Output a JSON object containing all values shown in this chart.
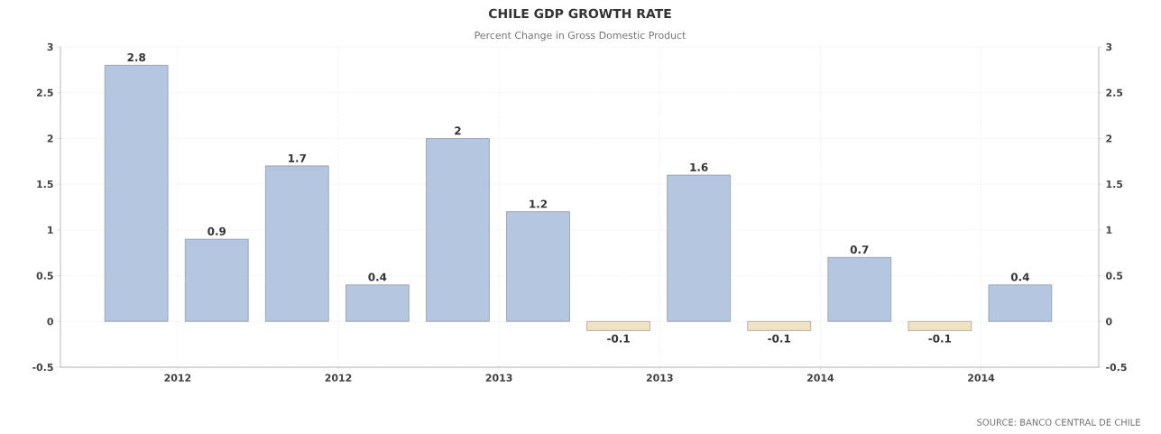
{
  "chart_data": {
    "type": "bar",
    "title": "CHILE GDP GROWTH RATE",
    "subtitle": "Percent Change in Gross Domestic Product",
    "x": [
      "2011-11-15",
      "2012-02-15",
      "2012-05-15",
      "2012-08-15",
      "2012-11-15",
      "2013-02-15",
      "2013-05-15",
      "2013-08-15",
      "2013-11-15",
      "2014-02-15",
      "2014-05-15",
      "2014-08-15"
    ],
    "values": [
      2.8,
      0.9,
      1.7,
      0.4,
      2,
      1.2,
      -0.1,
      1.6,
      -0.1,
      0.7,
      -0.1,
      0.4
    ],
    "colors": [
      "#b4c6e0",
      "#b4c6e0",
      "#b4c6e0",
      "#b4c6e0",
      "#b4c6e0",
      "#b4c6e0",
      "#f0e2c4",
      "#b4c6e0",
      "#f0e2c4",
      "#b4c6e0",
      "#f0e2c4",
      "#b4c6e0"
    ],
    "data_labels": true,
    "xlim": [
      "2011-08-20",
      "2014-11-13"
    ],
    "xticks": [
      {
        "value": "2012-01-01",
        "label": "2012"
      },
      {
        "value": "2012-07-01",
        "label": "2012"
      },
      {
        "value": "2013-01-01",
        "label": "2013"
      },
      {
        "value": "2013-07-01",
        "label": "2013"
      },
      {
        "value": "2014-01-01",
        "label": "2014"
      },
      {
        "value": "2014-07-01",
        "label": "2014"
      }
    ],
    "ylim": [
      -0.5,
      3
    ],
    "yticks": [
      -0.5,
      0,
      0.5,
      1,
      1.5,
      2,
      2.5,
      3
    ],
    "y2lim": [
      -0.5,
      3
    ],
    "y2ticks": [
      -0.5,
      0,
      0.5,
      1,
      1.5,
      2,
      2.5,
      3
    ],
    "grid": true,
    "annotations": [
      "SOURCE: BANCO CENTRAL DE CHILE"
    ]
  }
}
